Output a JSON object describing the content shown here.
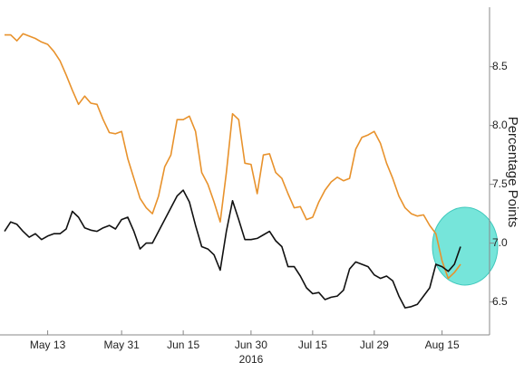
{
  "chart_data": {
    "type": "line",
    "y_axis_label": "Percentage Points",
    "x_axis_label": "2016",
    "categories": [
      null,
      null,
      null,
      null,
      null,
      null,
      null,
      "May 13",
      null,
      null,
      null,
      null,
      null,
      null,
      null,
      null,
      null,
      null,
      null,
      "May 31",
      null,
      null,
      null,
      null,
      null,
      null,
      null,
      null,
      null,
      "Jun 15",
      null,
      null,
      null,
      null,
      null,
      null,
      null,
      null,
      null,
      null,
      "Jun 30",
      null,
      null,
      null,
      null,
      null,
      null,
      null,
      null,
      null,
      "Jul 15",
      null,
      null,
      null,
      null,
      null,
      null,
      null,
      null,
      null,
      "Jul 29",
      null,
      null,
      null,
      null,
      null,
      null,
      null,
      null,
      null,
      null,
      "Aug 15",
      null,
      null,
      null
    ],
    "series": [
      {
        "color": "#e8922c",
        "values": [
          8.77,
          8.77,
          8.72,
          8.78,
          8.76,
          8.74,
          8.71,
          8.69,
          8.63,
          8.55,
          8.43,
          8.3,
          8.18,
          8.25,
          8.19,
          8.18,
          8.05,
          7.94,
          7.93,
          7.95,
          7.72,
          7.55,
          7.38,
          7.3,
          7.25,
          7.4,
          7.65,
          7.75,
          8.05,
          8.05,
          8.08,
          7.95,
          7.6,
          7.5,
          7.35,
          7.18,
          7.6,
          8.1,
          8.05,
          7.68,
          7.67,
          7.42,
          7.75,
          7.76,
          7.6,
          7.55,
          7.42,
          7.3,
          7.31,
          7.2,
          7.22,
          7.35,
          7.45,
          7.52,
          7.56,
          7.53,
          7.55,
          7.8,
          7.9,
          7.92,
          7.95,
          7.85,
          7.68,
          7.55,
          7.4,
          7.3,
          7.25,
          7.23,
          7.24,
          7.15,
          7.08,
          6.85,
          6.7,
          6.75,
          6.82
        ]
      },
      {
        "color": "#111111",
        "values": [
          7.1,
          7.18,
          7.16,
          7.1,
          7.05,
          7.08,
          7.03,
          7.06,
          7.08,
          7.08,
          7.12,
          7.27,
          7.22,
          7.13,
          7.11,
          7.1,
          7.13,
          7.15,
          7.12,
          7.2,
          7.22,
          7.1,
          6.95,
          7.0,
          7.0,
          7.1,
          7.2,
          7.3,
          7.4,
          7.45,
          7.35,
          7.15,
          6.97,
          6.95,
          6.9,
          6.77,
          7.1,
          7.36,
          7.2,
          7.03,
          7.03,
          7.04,
          7.07,
          7.1,
          7.02,
          6.97,
          6.8,
          6.8,
          6.72,
          6.62,
          6.57,
          6.58,
          6.52,
          6.54,
          6.55,
          6.6,
          6.78,
          6.84,
          6.82,
          6.8,
          6.73,
          6.7,
          6.72,
          6.68,
          6.55,
          6.45,
          6.46,
          6.48,
          6.55,
          6.62,
          6.82,
          6.8,
          6.76,
          6.82,
          6.97
        ]
      }
    ],
    "ylim": [
      6.22,
      8.99
    ],
    "yticks": [
      6.5,
      {
        "value": 7,
        "label": "7.0"
      },
      7.5,
      {
        "value": 8,
        "label": "8.0"
      },
      8.5
    ]
  }
}
